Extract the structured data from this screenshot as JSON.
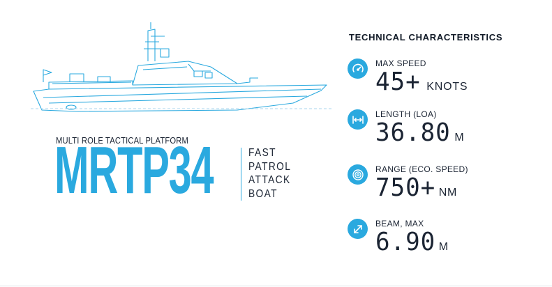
{
  "product": {
    "subtitle": "MULTI ROLE TACTICAL PLATFORM",
    "model": "MRTP34",
    "description_lines": [
      "FAST",
      "PATROL",
      "ATTACK",
      "BOAT"
    ]
  },
  "tech": {
    "title": "TECHNICAL CHARACTERISTICS",
    "specs": [
      {
        "label": "MAX SPEED",
        "value": "45+",
        "unit": " KNOTS",
        "icon": "speedometer-icon"
      },
      {
        "label": "LENGTH (LOA)",
        "value": "36.80",
        "unit": "M",
        "icon": "length-arrows-icon"
      },
      {
        "label": "RANGE (ECO. SPEED)",
        "value": "750+",
        "unit": "NM",
        "icon": "range-target-icon"
      },
      {
        "label": "BEAM, MAX",
        "value": "6.90",
        "unit": "M",
        "icon": "beam-expand-icon"
      }
    ]
  },
  "colors": {
    "accent": "#2aa9df",
    "text": "#1b2433"
  }
}
